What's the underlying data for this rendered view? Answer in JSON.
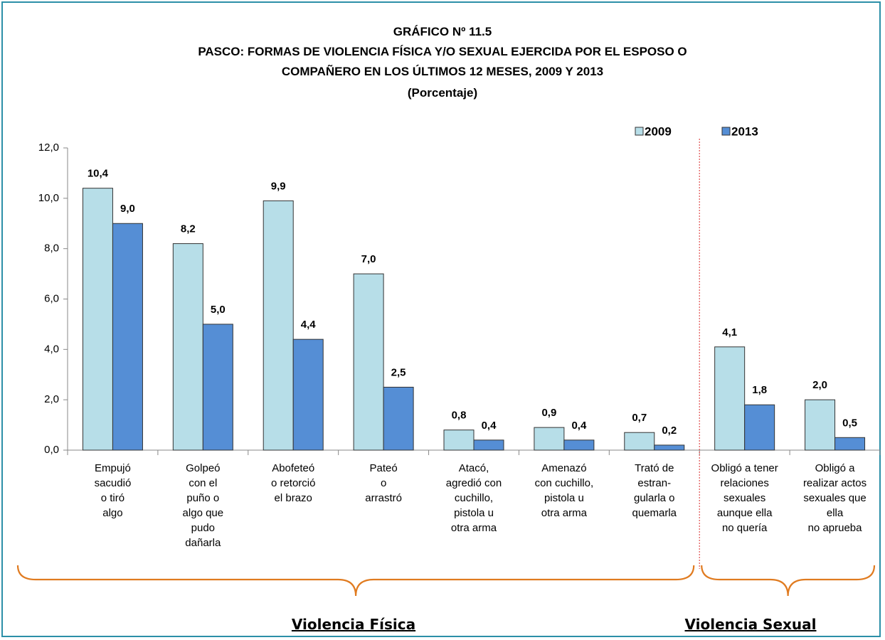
{
  "chart_data": {
    "type": "bar",
    "title": "GRÁFICO Nº 11.5",
    "subtitle": "PASCO: FORMAS DE VIOLENCIA FÍSICA Y/O SEXUAL EJERCIDA POR EL ESPOSO O\nCOMPAÑERO EN LOS ÚLTIMOS 12 MESES, 2009 Y 2013",
    "units": "(Porcentaje)",
    "categories": [
      "Empujó\nsacudió\no tiró\nalgo",
      "Golpeó\ncon el\npuño o\nalgo que\npudo\ndañarla",
      "Abofeteó\no retorció\nel brazo",
      "Pateó\no\narrastró",
      "Atacó,\nagredió con\ncuchillo,\npistola u\notra arma",
      "Amenazó\ncon cuchillo,\npistola u\notra arma",
      "Trató de\nestran-\ngularla o\nquemarla",
      "Obligó a tener\nrelaciones\nsexuales\naunque ella\nno quería",
      "Obligó a\nrealizar actos\nsexuales que\nella\nno aprueba"
    ],
    "series": [
      {
        "name": "2009",
        "color": "#b7dee8",
        "values": [
          10.4,
          8.2,
          9.9,
          7.0,
          0.8,
          0.9,
          0.7,
          4.1,
          2.0
        ],
        "value_labels": [
          "10,4",
          "8,2",
          "9,9",
          "7,0",
          "0,8",
          "0,9",
          "0,7",
          "4,1",
          "2,0"
        ]
      },
      {
        "name": "2013",
        "color": "#558ed5",
        "values": [
          9.0,
          5.0,
          4.4,
          2.5,
          0.4,
          0.4,
          0.2,
          1.8,
          0.5
        ],
        "value_labels": [
          "9,0",
          "5,0",
          "4,4",
          "2,5",
          "0,4",
          "0,4",
          "0,2",
          "1,8",
          "0,5"
        ]
      }
    ],
    "groups": [
      "Violencia Física",
      "Violencia Sexual"
    ],
    "ylim": [
      0,
      12
    ],
    "yticks": [
      {
        "value": 0,
        "label": "0,0"
      },
      {
        "value": 2,
        "label": "2,0"
      },
      {
        "value": 4,
        "label": "4,0"
      },
      {
        "value": 6,
        "label": "6,0"
      },
      {
        "value": 8,
        "label": "8,0"
      },
      {
        "value": 10,
        "label": "10,0"
      },
      {
        "value": 12,
        "label": "12,0"
      }
    ],
    "grid": false,
    "legend": "top-right"
  }
}
